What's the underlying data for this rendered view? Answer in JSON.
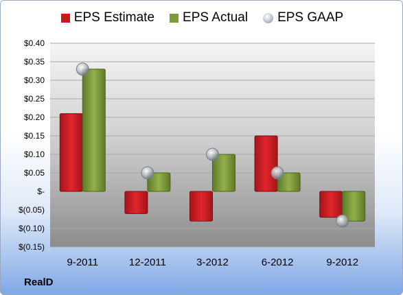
{
  "chart_data": {
    "type": "bar",
    "categories": [
      "9-2011",
      "12-2011",
      "3-2012",
      "6-2012",
      "9-2012"
    ],
    "series": [
      {
        "name": "EPS Estimate",
        "values": [
          0.21,
          -0.06,
          -0.08,
          0.15,
          -0.07
        ],
        "color": "#c8191f"
      },
      {
        "name": "EPS Actual",
        "values": [
          0.33,
          0.05,
          0.1,
          0.05,
          -0.08
        ],
        "color": "#7e9b3c"
      },
      {
        "name": "EPS GAAP",
        "values": [
          0.33,
          0.05,
          0.1,
          0.05,
          -0.08
        ],
        "type": "scatter"
      }
    ],
    "ylim": [
      -0.15,
      0.4
    ],
    "yticks": [
      0.4,
      0.35,
      0.3,
      0.25,
      0.2,
      0.15,
      0.1,
      0.05,
      0,
      -0.05,
      -0.1,
      -0.15
    ],
    "ytick_labels": [
      "$0.40",
      "$0.35",
      "$0.30",
      "$0.25",
      "$0.20",
      "$0.15",
      "$0.10",
      "$0.05",
      "$-",
      "$(0.05)",
      "$(0.10)",
      "$(0.15)"
    ],
    "legend": "top-center",
    "grid": true
  },
  "company": "RealD"
}
